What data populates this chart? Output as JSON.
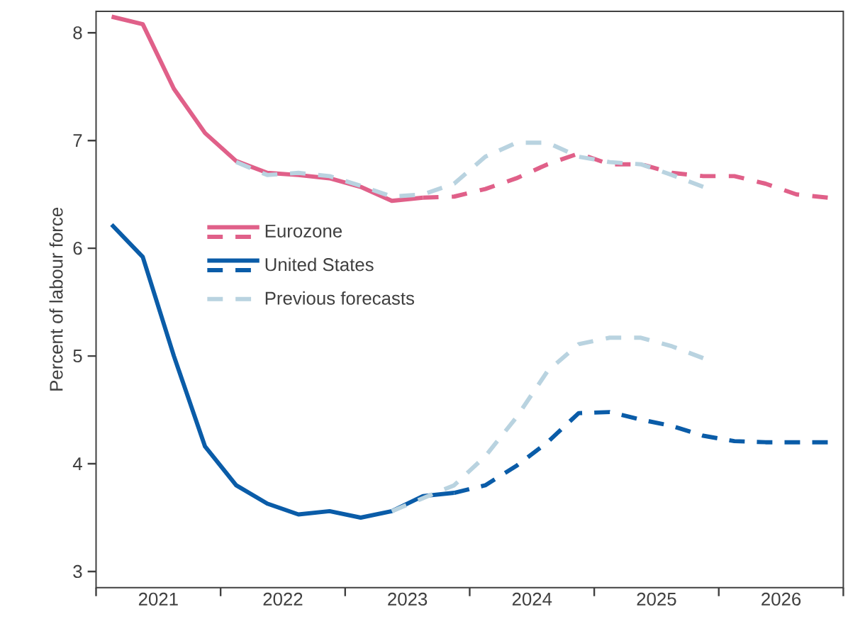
{
  "chart_data": {
    "type": "line",
    "ylabel": "Percent of labour force",
    "xlim": [
      2021,
      2027
    ],
    "ylim": [
      2.85,
      8.2
    ],
    "xticks": [
      {
        "value": 2021,
        "label": null
      },
      {
        "value": 2021.5,
        "label": "2021"
      },
      {
        "value": 2022,
        "label": null
      },
      {
        "value": 2022.5,
        "label": "2022"
      },
      {
        "value": 2023,
        "label": null
      },
      {
        "value": 2023.5,
        "label": "2023"
      },
      {
        "value": 2024,
        "label": null
      },
      {
        "value": 2024.5,
        "label": "2024"
      },
      {
        "value": 2025,
        "label": null
      },
      {
        "value": 2025.5,
        "label": "2025"
      },
      {
        "value": 2026,
        "label": null
      },
      {
        "value": 2026.5,
        "label": "2026"
      },
      {
        "value": 2027,
        "label": null
      }
    ],
    "yticks": [
      3,
      4,
      5,
      6,
      7,
      8
    ],
    "grid": false,
    "legend": "left",
    "marker": "none",
    "series": [
      {
        "name": "Eurozone",
        "color": "#e06089",
        "line_style": "solid",
        "x": [
          2021.125,
          2021.375,
          2021.625,
          2021.875,
          2022.125,
          2022.375,
          2022.625,
          2022.875,
          2023.125,
          2023.375,
          2023.625
        ],
        "values": [
          8.15,
          8.08,
          7.48,
          7.07,
          6.81,
          6.7,
          6.68,
          6.65,
          6.57,
          6.44,
          6.47
        ]
      },
      {
        "color": "#e06089",
        "line_style": "dashed",
        "x": [
          2023.625,
          2023.875,
          2024.125,
          2024.375,
          2024.625,
          2024.875,
          2025.125,
          2025.375,
          2025.625,
          2025.875,
          2026.125,
          2026.375,
          2026.625,
          2026.875
        ],
        "values": [
          6.47,
          6.48,
          6.55,
          6.65,
          6.78,
          6.88,
          6.78,
          6.78,
          6.7,
          6.67,
          6.67,
          6.6,
          6.5,
          6.47
        ]
      },
      {
        "name": "United States",
        "color": "#0a5ca8",
        "line_style": "solid",
        "x": [
          2021.125,
          2021.375,
          2021.625,
          2021.875,
          2022.125,
          2022.375,
          2022.625,
          2022.875,
          2023.125,
          2023.375,
          2023.625,
          2023.875
        ],
        "values": [
          6.22,
          5.92,
          5.0,
          4.16,
          3.8,
          3.63,
          3.53,
          3.56,
          3.5,
          3.56,
          3.7,
          3.73
        ]
      },
      {
        "color": "#0a5ca8",
        "line_style": "dashed",
        "x": [
          2023.875,
          2024.125,
          2024.375,
          2024.625,
          2024.875,
          2025.125,
          2025.375,
          2025.625,
          2025.875,
          2026.125,
          2026.375,
          2026.625,
          2026.875
        ],
        "values": [
          3.73,
          3.8,
          3.98,
          4.2,
          4.47,
          4.48,
          4.41,
          4.35,
          4.26,
          4.21,
          4.2,
          4.2,
          4.2
        ]
      },
      {
        "name": "Previous forecasts",
        "color": "#b9d3e0",
        "line_style": "dashed",
        "x": [
          2022.125,
          2022.375,
          2022.625,
          2022.875,
          2023.125,
          2023.375,
          2023.625,
          2023.875,
          2024.125,
          2024.375,
          2024.625,
          2024.875,
          2025.125,
          2025.375,
          2025.625,
          2025.875
        ],
        "values": [
          6.8,
          6.68,
          6.7,
          6.67,
          6.58,
          6.48,
          6.5,
          6.6,
          6.85,
          6.98,
          6.98,
          6.85,
          6.8,
          6.78,
          6.68,
          6.57
        ]
      },
      {
        "color": "#b9d3e0",
        "line_style": "dashed",
        "x": [
          2023.375,
          2023.625,
          2023.875,
          2024.125,
          2024.375,
          2024.625,
          2024.875,
          2025.125,
          2025.375,
          2025.625,
          2025.875
        ],
        "values": [
          3.56,
          3.68,
          3.8,
          4.07,
          4.43,
          4.86,
          5.11,
          5.17,
          5.17,
          5.09,
          4.98
        ]
      }
    ]
  }
}
